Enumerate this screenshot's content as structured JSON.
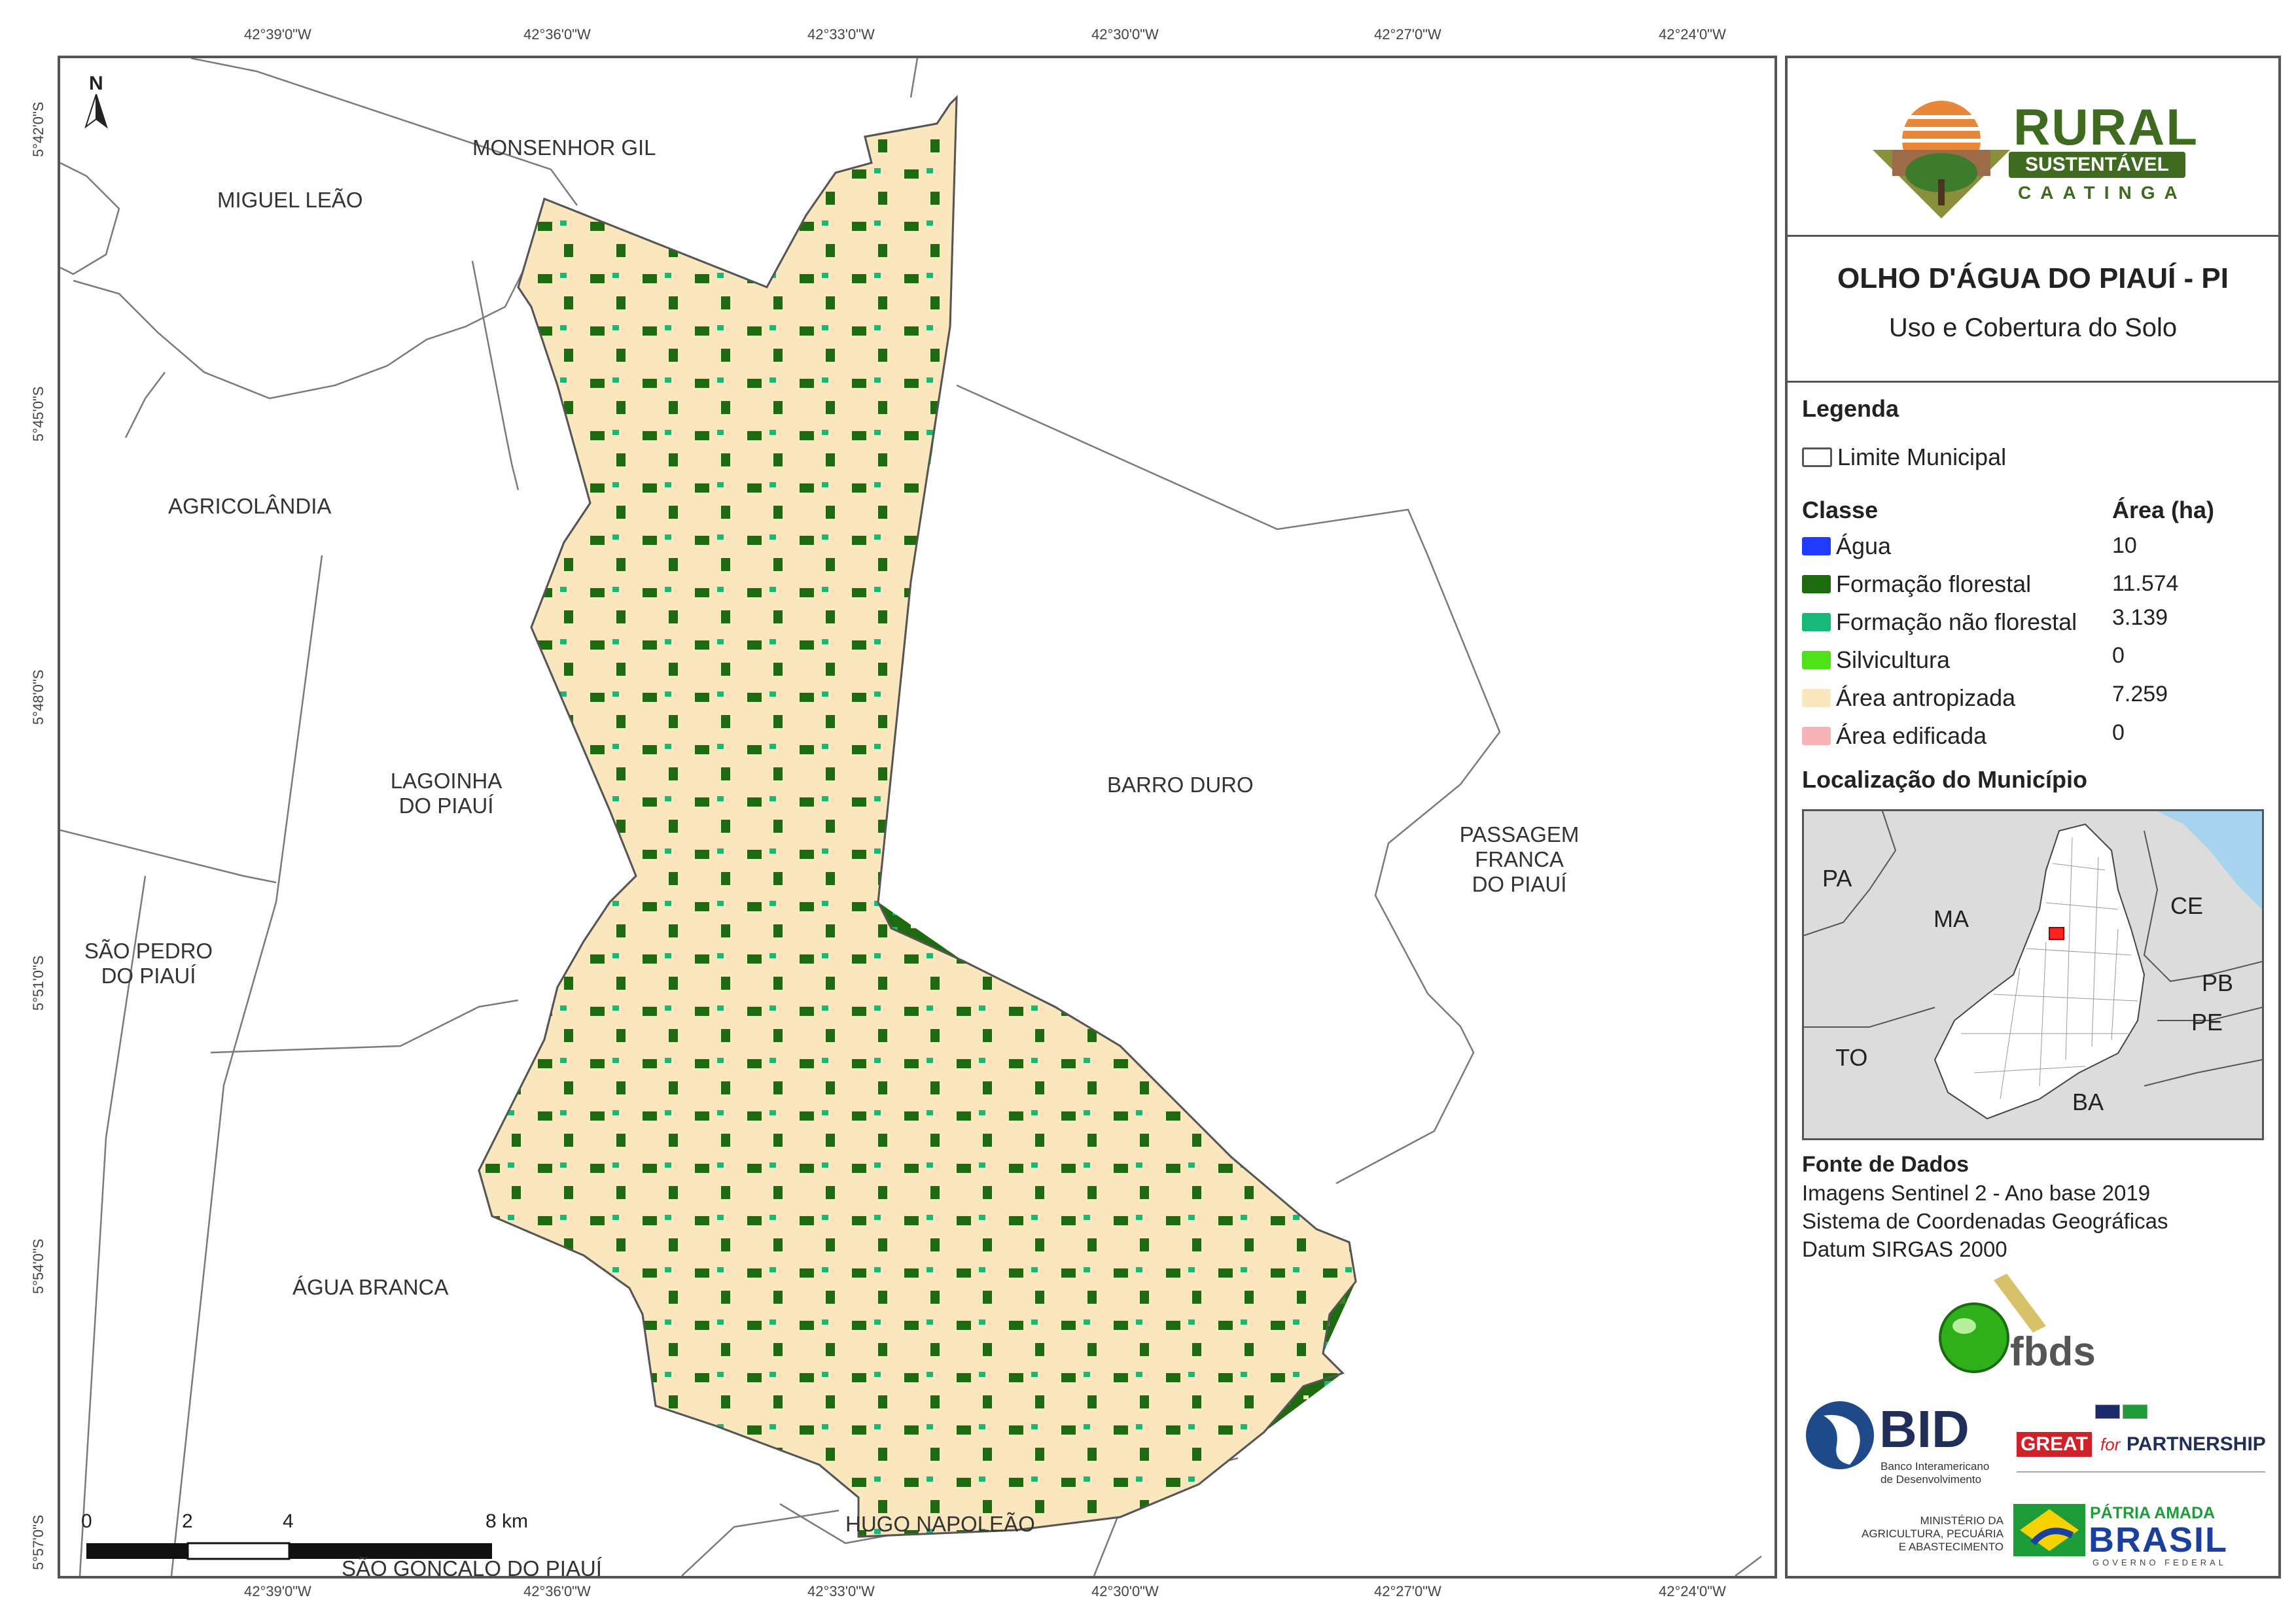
{
  "coordinates": {
    "lon_top": [
      "42°39'0\"W",
      "42°36'0\"W",
      "42°33'0\"W",
      "42°30'0\"W",
      "42°27'0\"W",
      "42°24'0\"W"
    ],
    "lon_bottom": [
      "42°39'0\"W",
      "42°36'0\"W",
      "42°33'0\"W",
      "42°30'0\"W",
      "42°27'0\"W",
      "42°24'0\"W"
    ],
    "lat_left": [
      "5°42'0\"S",
      "5°45'0\"S",
      "5°48'0\"S",
      "5°51'0\"S",
      "5°54'0\"S",
      "5°57'0\"S"
    ]
  },
  "north_arrow": {
    "label": "N"
  },
  "municipalities": {
    "monsenhor_gil": "MONSENHOR GIL",
    "miguel_leao": "MIGUEL LEÃO",
    "agricolandia": "AGRICOLÂNDIA",
    "lagoinha_1": "LAGOINHA",
    "lagoinha_2": "DO PIAUÍ",
    "barro_duro": "BARRO DURO",
    "passagem_1": "PASSAGEM",
    "passagem_2": "FRANCA",
    "passagem_3": "DO PIAUÍ",
    "sao_pedro_1": "SÃO PEDRO",
    "sao_pedro_2": "DO PIAUÍ",
    "agua_branca": "ÁGUA BRANCA",
    "hugo_napoleao": "HUGO NAPOLEÃO",
    "sao_goncalo": "SÃO GONÇALO DO PIAUÍ"
  },
  "scale_bar": {
    "ticks": [
      "0",
      "2",
      "4",
      "8 km"
    ]
  },
  "logo": {
    "word1": "RURAL",
    "word2": "SUSTENTÁVEL",
    "word3": "CAATINGA"
  },
  "header": {
    "title": "OLHO D'ÁGUA DO PIAUÍ - PI",
    "subtitle": "Uso e Cobertura do Solo"
  },
  "legend": {
    "title": "Legenda",
    "boundary_label": "Limite Municipal",
    "class_header": "Classe",
    "area_header": "Área (ha)",
    "classes": [
      {
        "label": "Água",
        "area": "10",
        "color": "#1f3bff"
      },
      {
        "label": "Formação florestal",
        "area": "11.574",
        "color": "#1e6b0f"
      },
      {
        "label": "Formação não florestal",
        "area": "3.139",
        "color": "#17b97a"
      },
      {
        "label": "Silvicultura",
        "area": "0",
        "color": "#4fe21b"
      },
      {
        "label": "Área antropizada",
        "area": "7.259",
        "color": "#fbe7bd"
      },
      {
        "label": "Área edificada",
        "area": "0",
        "color": "#f7b3b6"
      }
    ]
  },
  "locator": {
    "title": "Localização do Município",
    "labels": {
      "pa": "PA",
      "ma": "MA",
      "ce": "CE",
      "pb": "PB",
      "pe": "PE",
      "to": "TO",
      "ba": "BA"
    }
  },
  "sources": {
    "title": "Fonte de Dados",
    "lines": [
      "Imagens Sentinel 2 - Ano base 2019",
      "Sistema de Coordenadas Geográficas",
      "Datum SIRGAS 2000"
    ]
  },
  "partners": {
    "fbds": "fbds",
    "bid": "BID",
    "bid_sub1": "Banco Interamericano",
    "bid_sub2": "de Desenvolvimento",
    "great": "GREAT",
    "for": "for",
    "partnership": "PARTNERSHIP",
    "ministry1": "MINISTÉRIO DA",
    "ministry2": "AGRICULTURA, PECUÁRIA",
    "ministry3": "E ABASTECIMENTO",
    "patria": "PÁTRIA AMADA",
    "brasil": "BRASIL",
    "governo": "GOVERNO FEDERAL"
  }
}
